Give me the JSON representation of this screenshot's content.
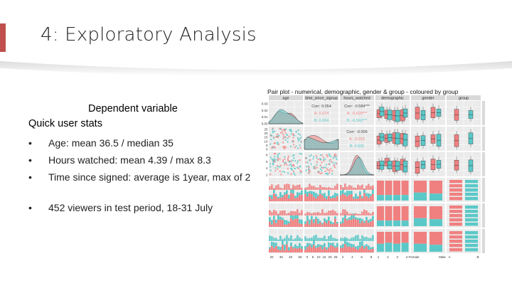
{
  "slide": {
    "title": "4: Exploratory Analysis",
    "subheading": "Dependent variable",
    "quick_stats_title": "Quick user stats",
    "bullets": [
      "Age: mean 36.5 / median 35",
      "Hours watched: mean 4.39 / max 8.3",
      "Time since signed: average is 1year, max of 2",
      "452 viewers in test period, 18-31 July"
    ],
    "accent_color": "#c0504d"
  },
  "pairplot": {
    "title": "Pair plot - numerical, demographic, gender & group - coloured by group",
    "columns": [
      "age",
      "time_since_signup",
      "hours_watched",
      "demographic",
      "gender",
      "group"
    ],
    "rows": [
      "age",
      "time_since_signup",
      "hours_watched",
      "demographic",
      "gender",
      "group"
    ],
    "colors": {
      "A": "#f08080",
      "B": "#5bc8c8",
      "panel": "#ebebeb",
      "strip": "#d9d9d9"
    },
    "correlations": [
      {
        "cell": "age-time_since_signup",
        "corr": "Corr: 0.054",
        "a": "A: 0.074",
        "b": "B: 0.004"
      },
      {
        "cell": "age-hours_watched",
        "corr": "Corr: -0.584***",
        "a": "A: -0.629***",
        "b": "B: -0.560***"
      },
      {
        "cell": "time_since_signup-hours_watched",
        "corr": "Corr: -0.006",
        "a": "A: -0.015",
        "b": "B: 0.025"
      }
    ],
    "x_ticks": {
      "age": [
        "20",
        "30",
        "40",
        "50"
      ],
      "time_since_signup": [
        "0",
        "5",
        "10",
        "15",
        "20",
        "25"
      ],
      "hours_watched": [
        "2",
        "4",
        "6",
        "8"
      ],
      "demographic": [
        "1",
        "2",
        "3",
        "4"
      ],
      "gender": [
        "Female",
        "Male"
      ],
      "group": [
        "A",
        "B"
      ]
    },
    "y_ticks": {
      "age": [
        "0.03",
        "0.02",
        "0.01",
        "0.00"
      ],
      "time_since_signup": [
        "25",
        "20",
        "15",
        "10",
        "5",
        "0"
      ],
      "hours_watched": [
        "8",
        "6",
        "4",
        "2"
      ]
    }
  }
}
